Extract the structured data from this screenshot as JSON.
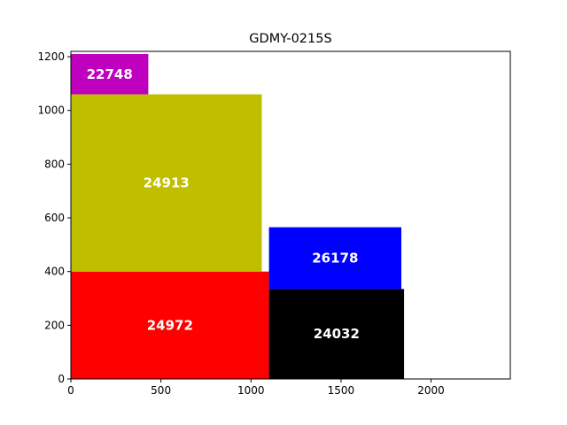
{
  "chart_data": {
    "type": "bar",
    "title": "GDMY-0215S",
    "xlabel": "",
    "ylabel": "",
    "xlim": [
      0,
      2440
    ],
    "ylim": [
      0,
      1220
    ],
    "x_ticks": [
      0,
      500,
      1000,
      1500,
      2000
    ],
    "y_ticks": [
      0,
      200,
      400,
      600,
      800,
      1000,
      1200
    ],
    "grid": false,
    "rectangles": [
      {
        "label": "24972",
        "x": 0,
        "y": 0,
        "width": 1100,
        "height": 400,
        "color": "#ff0000"
      },
      {
        "label": "24913",
        "x": 0,
        "y": 400,
        "width": 1060,
        "height": 660,
        "color": "#bfbf00"
      },
      {
        "label": "22748",
        "x": 0,
        "y": 1060,
        "width": 430,
        "height": 150,
        "color": "#bf00bf"
      },
      {
        "label": "24032",
        "x": 1100,
        "y": 0,
        "width": 750,
        "height": 335,
        "color": "#000000"
      },
      {
        "label": "26178",
        "x": 1100,
        "y": 335,
        "width": 735,
        "height": 230,
        "color": "#0000ff"
      }
    ]
  }
}
